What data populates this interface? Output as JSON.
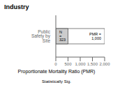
{
  "chart_data": {
    "type": "bar",
    "title": "Industry",
    "xlabel": "Proportionate Mortality Ratio (PMR)",
    "orientation": "horizontal",
    "categories": [
      "Public Safety by Site"
    ],
    "series": [
      {
        "color": "#ffffff",
        "values": [
          2000
        ]
      },
      {
        "color": "#cccccc",
        "values": [
          500
        ]
      }
    ],
    "xlim": [
      0,
      2000
    ],
    "xticks": [
      0,
      500,
      {
        "value": 1000,
        "label": "1,000"
      },
      {
        "value": 1500,
        "label": "1,500"
      },
      {
        "value": 2000,
        "label": "2,000"
      }
    ],
    "grid": false,
    "annotations": [
      "N = 323",
      "PMR = 1,000",
      "Statistically Sig."
    ]
  }
}
